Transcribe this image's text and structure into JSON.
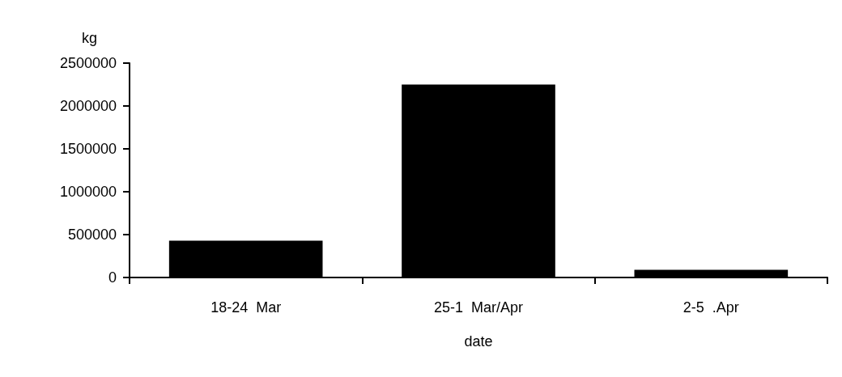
{
  "chart_data": {
    "type": "bar",
    "xlabel": "date",
    "ylabel": "kg",
    "categories": [
      "18-24  Mar",
      "25-1  Mar/Apr",
      "2-5  .Apr"
    ],
    "values": [
      430000,
      2250000,
      90000
    ],
    "color": "#000000",
    "ylim": [
      0,
      2500000
    ],
    "yticks": [
      0,
      500000,
      1000000,
      1500000,
      2000000,
      2500000
    ],
    "grid": false
  }
}
